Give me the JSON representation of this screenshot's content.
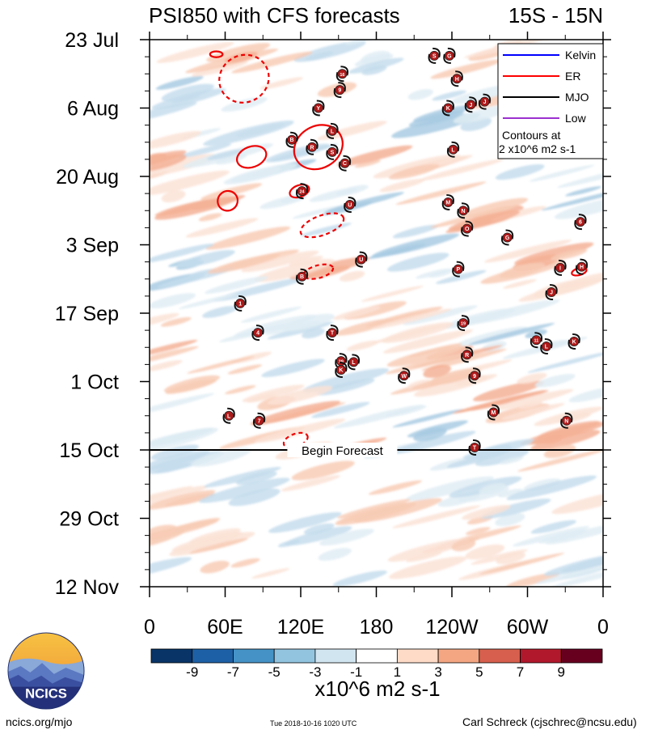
{
  "chart_data": {
    "type": "heatmap",
    "title": "PSI850 with CFS forecasts",
    "region": "15S - 15N",
    "x_axis": {
      "ticks": [
        "0",
        "60E",
        "120E",
        "180",
        "120W",
        "60W",
        "0"
      ],
      "tick_lon": [
        0,
        60,
        120,
        180,
        240,
        300,
        360
      ],
      "range": [
        0,
        360
      ]
    },
    "y_axis": {
      "ticks": [
        "23 Jul",
        "6 Aug",
        "20 Aug",
        "3 Sep",
        "17 Sep",
        "1 Oct",
        "15 Oct",
        "29 Oct",
        "12 Nov"
      ],
      "tick_day": [
        0,
        14,
        28,
        42,
        56,
        70,
        84,
        98,
        112
      ],
      "range": [
        0,
        112
      ],
      "direction": "time increases downward"
    },
    "colorbar": {
      "labels": [
        "-9",
        "-7",
        "-5",
        "-3",
        "-1",
        "1",
        "3",
        "5",
        "7",
        "9"
      ],
      "colors": [
        "#083468",
        "#1d60a6",
        "#4593c6",
        "#93c4df",
        "#d1e5f0",
        "#ffffff",
        "#fddbc7",
        "#f4a683",
        "#d6604d",
        "#b2182b",
        "#67001f"
      ],
      "units": "x10^6 m2 s-1"
    },
    "forecast_line": {
      "label": "Begin Forecast",
      "day": 84
    },
    "legend": [
      {
        "name": "Kelvin",
        "color": "#0000ff"
      },
      {
        "name": "ER",
        "color": "#ff0000"
      },
      {
        "name": "MJO",
        "color": "#000000"
      },
      {
        "name": "Low",
        "color": "#9b30d0"
      }
    ],
    "legend_note": [
      "Contours at",
      "2 x10^6 m2 s-1"
    ],
    "er_contours": [
      {
        "lon": 75,
        "day": 8,
        "rlon": 10,
        "rday": 4.8,
        "tilt": -30,
        "style": "dashed"
      },
      {
        "lon": 134,
        "day": 22,
        "rlon": 10,
        "rday": 4.3,
        "tilt": -30,
        "style": "solid"
      },
      {
        "lon": 81,
        "day": 24,
        "rlon": 6,
        "rday": 2.1,
        "tilt": -20,
        "style": "solid"
      },
      {
        "lon": 62,
        "day": 33,
        "rlon": 4,
        "rday": 2,
        "tilt": -35,
        "style": "solid"
      },
      {
        "lon": 119,
        "day": 31,
        "rlon": 4,
        "rday": 1.2,
        "tilt": -20,
        "style": "solid"
      },
      {
        "lon": 137,
        "day": 38,
        "rlon": 9,
        "rday": 2,
        "tilt": -20,
        "style": "dashed"
      },
      {
        "lon": 134,
        "day": 47.5,
        "rlon": 6,
        "rday": 1.3,
        "tilt": -15,
        "style": "dashed"
      },
      {
        "lon": 341,
        "day": 47.5,
        "rlon": 3,
        "rday": 0.7,
        "tilt": -15,
        "style": "solid"
      },
      {
        "lon": 116,
        "day": 82,
        "rlon": 5,
        "rday": 1.3,
        "tilt": -20,
        "style": "dashed"
      },
      {
        "lon": 53,
        "day": 3,
        "rlon": 2.5,
        "rday": 0.6,
        "tilt": 0,
        "style": "solid"
      }
    ],
    "storms": [
      {
        "label": "S",
        "lon": 226,
        "day": 3.3
      },
      {
        "label": "G",
        "lon": 238,
        "day": 3.3
      },
      {
        "label": "16",
        "lon": 153,
        "day": 7
      },
      {
        "label": "H",
        "lon": 244,
        "day": 8
      },
      {
        "label": "9",
        "lon": 151,
        "day": 10.3
      },
      {
        "label": "Y",
        "lon": 134,
        "day": 14
      },
      {
        "label": "K",
        "lon": 237,
        "day": 14
      },
      {
        "label": "J",
        "lon": 255,
        "day": 13.3
      },
      {
        "label": "J",
        "lon": 266,
        "day": 12.7
      },
      {
        "label": "B",
        "lon": 113,
        "day": 20.5
      },
      {
        "label": "L",
        "lon": 145,
        "day": 18.7
      },
      {
        "label": "R",
        "lon": 129,
        "day": 22
      },
      {
        "label": "S",
        "lon": 145,
        "day": 23
      },
      {
        "label": "L",
        "lon": 241,
        "day": 22.5
      },
      {
        "label": "C",
        "lon": 155,
        "day": 25.3
      },
      {
        "label": "24",
        "lon": 121,
        "day": 31
      },
      {
        "label": "M",
        "lon": 237,
        "day": 33.3
      },
      {
        "label": "U",
        "lon": 159,
        "day": 33.8
      },
      {
        "label": "N",
        "lon": 249,
        "day": 35
      },
      {
        "label": "6",
        "lon": 342,
        "day": 37.3
      },
      {
        "label": "O",
        "lon": 252,
        "day": 38.7
      },
      {
        "label": "G",
        "lon": 284,
        "day": 40.5
      },
      {
        "label": "U",
        "lon": 168,
        "day": 45
      },
      {
        "label": "B",
        "lon": 121,
        "day": 48.5
      },
      {
        "label": "P",
        "lon": 245,
        "day": 47
      },
      {
        "label": "I",
        "lon": 326,
        "day": 46.7
      },
      {
        "label": "H",
        "lon": 343,
        "day": 46.5
      },
      {
        "label": "J",
        "lon": 319,
        "day": 51.7
      },
      {
        "label": "1",
        "lon": 72,
        "day": 54
      },
      {
        "label": "19",
        "lon": 249,
        "day": 58
      },
      {
        "label": "4",
        "lon": 86,
        "day": 60
      },
      {
        "label": "T",
        "lon": 145,
        "day": 60
      },
      {
        "label": "11",
        "lon": 307,
        "day": 61.5
      },
      {
        "label": "L",
        "lon": 315,
        "day": 62.8
      },
      {
        "label": "K",
        "lon": 337,
        "day": 61.8
      },
      {
        "label": "R",
        "lon": 252,
        "day": 64.5
      },
      {
        "label": "29",
        "lon": 152,
        "day": 65.8
      },
      {
        "label": "L",
        "lon": 162,
        "day": 66
      },
      {
        "label": "K",
        "lon": 152,
        "day": 67.6
      },
      {
        "label": "W",
        "lon": 202,
        "day": 68.8
      },
      {
        "label": "9",
        "lon": 258,
        "day": 68.8
      },
      {
        "label": "M",
        "lon": 273,
        "day": 76.3
      },
      {
        "label": "L",
        "lon": 63,
        "day": 77
      },
      {
        "label": "7",
        "lon": 87,
        "day": 78
      },
      {
        "label": "N",
        "lon": 331,
        "day": 78
      },
      {
        "label": "T",
        "lon": 258,
        "day": 83.5
      }
    ]
  },
  "footer": {
    "left": "ncics.org/mjo",
    "center": "Tue 2018-10-16 1020 UTC",
    "right": "Carl Schreck (cjschrec@ncsu.edu)",
    "logo_text": "NCICS"
  }
}
